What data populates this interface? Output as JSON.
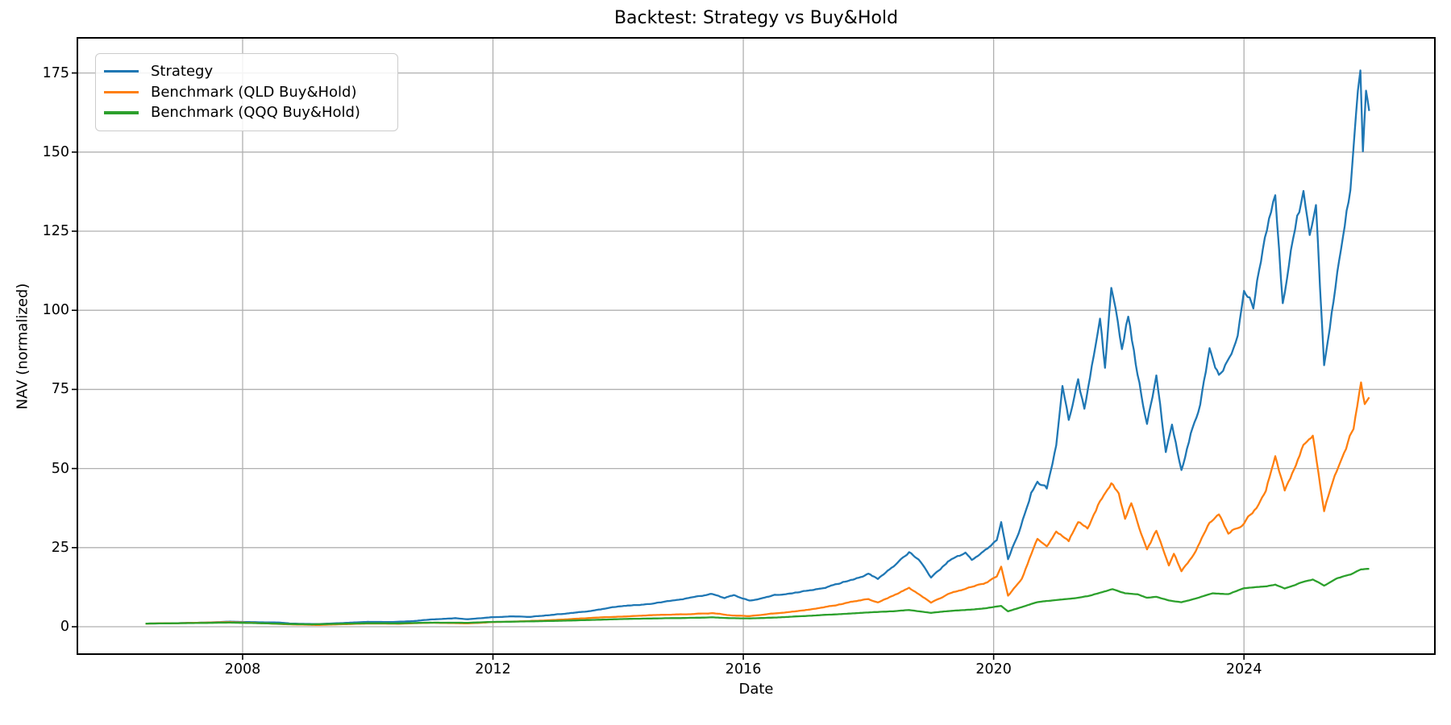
{
  "chart_data": {
    "type": "line",
    "title": "Backtest: Strategy vs Buy&Hold",
    "xlabel": "Date",
    "ylabel": "NAV (normalized)",
    "grid": true,
    "grid_color": "#b0b0b0",
    "axis_color": "#000000",
    "background": "#ffffff",
    "legend_position": "upper left",
    "xlim": [
      2005.36,
      2027.05
    ],
    "ylim": [
      -8.65,
      186.1
    ],
    "x_ticks": [
      2008,
      2012,
      2016,
      2020,
      2024
    ],
    "y_ticks": [
      0,
      25,
      50,
      75,
      100,
      125,
      150,
      175
    ],
    "x_unit": "year",
    "series": [
      {
        "name": "Strategy",
        "color": "#1f77b4",
        "noise_frac": 0.02,
        "points": [
          [
            2006.45,
            1.0
          ],
          [
            2006.7,
            1.05
          ],
          [
            2007.0,
            1.15
          ],
          [
            2007.4,
            1.3
          ],
          [
            2007.8,
            1.6
          ],
          [
            2008.2,
            1.45
          ],
          [
            2008.6,
            1.3
          ],
          [
            2008.75,
            1.0
          ],
          [
            2009.0,
            0.9
          ],
          [
            2009.2,
            0.85
          ],
          [
            2009.6,
            1.15
          ],
          [
            2010.0,
            1.55
          ],
          [
            2010.4,
            1.5
          ],
          [
            2010.7,
            1.75
          ],
          [
            2011.0,
            2.3
          ],
          [
            2011.4,
            2.7
          ],
          [
            2011.6,
            2.4
          ],
          [
            2012.0,
            3.0
          ],
          [
            2012.3,
            3.3
          ],
          [
            2012.6,
            3.1
          ],
          [
            2013.0,
            3.9
          ],
          [
            2013.5,
            4.8
          ],
          [
            2014.0,
            6.3
          ],
          [
            2014.5,
            7.2
          ],
          [
            2015.0,
            8.6
          ],
          [
            2015.5,
            10.4
          ],
          [
            2015.7,
            9.0
          ],
          [
            2015.85,
            10.0
          ],
          [
            2016.1,
            8.2
          ],
          [
            2016.5,
            10.0
          ],
          [
            2016.8,
            10.5
          ],
          [
            2017.0,
            11.2
          ],
          [
            2017.5,
            13.5
          ],
          [
            2018.0,
            16.8
          ],
          [
            2018.15,
            15.0
          ],
          [
            2018.4,
            19.0
          ],
          [
            2018.65,
            23.8
          ],
          [
            2018.8,
            21.0
          ],
          [
            2019.0,
            15.5
          ],
          [
            2019.3,
            21.0
          ],
          [
            2019.55,
            23.0
          ],
          [
            2019.65,
            21.0
          ],
          [
            2019.9,
            24.5
          ],
          [
            2020.05,
            27.0
          ],
          [
            2020.12,
            33.0
          ],
          [
            2020.23,
            21.5
          ],
          [
            2020.4,
            30.0
          ],
          [
            2020.6,
            43.0
          ],
          [
            2020.7,
            47.0
          ],
          [
            2020.85,
            44.0
          ],
          [
            2021.0,
            58.0
          ],
          [
            2021.1,
            76.0
          ],
          [
            2021.2,
            65.0
          ],
          [
            2021.35,
            78.0
          ],
          [
            2021.45,
            68.5
          ],
          [
            2021.6,
            87.0
          ],
          [
            2021.7,
            97.0
          ],
          [
            2021.78,
            82.0
          ],
          [
            2021.88,
            107.5
          ],
          [
            2021.95,
            100.0
          ],
          [
            2022.05,
            88.0
          ],
          [
            2022.15,
            99.0
          ],
          [
            2022.3,
            80.0
          ],
          [
            2022.45,
            64.0
          ],
          [
            2022.6,
            79.0
          ],
          [
            2022.75,
            55.0
          ],
          [
            2022.85,
            63.0
          ],
          [
            2023.0,
            48.5
          ],
          [
            2023.15,
            60.0
          ],
          [
            2023.3,
            70.0
          ],
          [
            2023.45,
            88.0
          ],
          [
            2023.6,
            80.0
          ],
          [
            2023.8,
            88.0
          ],
          [
            2023.9,
            95.0
          ],
          [
            2024.0,
            110.0
          ],
          [
            2024.15,
            104.0
          ],
          [
            2024.3,
            122.0
          ],
          [
            2024.5,
            139.0
          ],
          [
            2024.62,
            103.0
          ],
          [
            2024.75,
            120.0
          ],
          [
            2024.85,
            132.0
          ],
          [
            2024.95,
            138.0
          ],
          [
            2025.05,
            125.0
          ],
          [
            2025.15,
            135.0
          ],
          [
            2025.28,
            82.0
          ],
          [
            2025.4,
            100.0
          ],
          [
            2025.55,
            122.0
          ],
          [
            2025.7,
            140.0
          ],
          [
            2025.82,
            168.0
          ],
          [
            2025.86,
            176.0
          ],
          [
            2025.9,
            150.0
          ],
          [
            2025.95,
            170.0
          ],
          [
            2026.0,
            163.0
          ]
        ]
      },
      {
        "name": "Benchmark (QLD Buy&Hold)",
        "color": "#ff7f0e",
        "noise_frac": 0.02,
        "points": [
          [
            2006.45,
            1.0
          ],
          [
            2007.0,
            1.15
          ],
          [
            2007.8,
            1.45
          ],
          [
            2008.3,
            1.1
          ],
          [
            2008.75,
            0.75
          ],
          [
            2009.2,
            0.55
          ],
          [
            2009.6,
            0.8
          ],
          [
            2010.0,
            1.0
          ],
          [
            2010.5,
            0.95
          ],
          [
            2011.0,
            1.25
          ],
          [
            2011.6,
            1.05
          ],
          [
            2012.0,
            1.45
          ],
          [
            2012.5,
            1.7
          ],
          [
            2013.0,
            2.1
          ],
          [
            2013.5,
            2.7
          ],
          [
            2014.0,
            3.2
          ],
          [
            2014.5,
            3.6
          ],
          [
            2015.0,
            3.9
          ],
          [
            2015.5,
            4.3
          ],
          [
            2015.8,
            3.6
          ],
          [
            2016.1,
            3.4
          ],
          [
            2016.5,
            4.2
          ],
          [
            2017.0,
            5.3
          ],
          [
            2017.5,
            6.8
          ],
          [
            2018.0,
            8.8
          ],
          [
            2018.15,
            7.8
          ],
          [
            2018.4,
            10.0
          ],
          [
            2018.65,
            12.4
          ],
          [
            2019.0,
            7.6
          ],
          [
            2019.3,
            10.5
          ],
          [
            2019.6,
            12.3
          ],
          [
            2019.9,
            14.0
          ],
          [
            2020.05,
            16.0
          ],
          [
            2020.12,
            19.3
          ],
          [
            2020.23,
            10.0
          ],
          [
            2020.45,
            15.0
          ],
          [
            2020.7,
            27.5
          ],
          [
            2020.85,
            25.0
          ],
          [
            2021.0,
            30.0
          ],
          [
            2021.2,
            27.0
          ],
          [
            2021.35,
            33.0
          ],
          [
            2021.5,
            31.0
          ],
          [
            2021.7,
            40.0
          ],
          [
            2021.88,
            45.5
          ],
          [
            2022.0,
            42.0
          ],
          [
            2022.1,
            34.0
          ],
          [
            2022.2,
            39.0
          ],
          [
            2022.45,
            24.0
          ],
          [
            2022.6,
            30.0
          ],
          [
            2022.8,
            19.5
          ],
          [
            2022.88,
            23.0
          ],
          [
            2023.0,
            17.5
          ],
          [
            2023.2,
            23.0
          ],
          [
            2023.45,
            33.0
          ],
          [
            2023.6,
            35.0
          ],
          [
            2023.75,
            29.5
          ],
          [
            2024.0,
            33.0
          ],
          [
            2024.2,
            38.0
          ],
          [
            2024.35,
            44.0
          ],
          [
            2024.5,
            55.0
          ],
          [
            2024.65,
            43.5
          ],
          [
            2024.8,
            50.0
          ],
          [
            2024.95,
            58.0
          ],
          [
            2025.1,
            60.5
          ],
          [
            2025.28,
            36.0
          ],
          [
            2025.45,
            48.0
          ],
          [
            2025.6,
            55.0
          ],
          [
            2025.75,
            63.0
          ],
          [
            2025.87,
            77.0
          ],
          [
            2025.93,
            70.0
          ],
          [
            2026.0,
            72.5
          ]
        ]
      },
      {
        "name": "Benchmark (QQQ Buy&Hold)",
        "color": "#2ca02c",
        "noise_frac": 0.009,
        "points": [
          [
            2006.45,
            1.0
          ],
          [
            2007.0,
            1.1
          ],
          [
            2007.8,
            1.3
          ],
          [
            2008.3,
            1.1
          ],
          [
            2008.75,
            0.85
          ],
          [
            2009.1,
            0.75
          ],
          [
            2009.6,
            0.95
          ],
          [
            2010.0,
            1.1
          ],
          [
            2010.5,
            1.08
          ],
          [
            2011.0,
            1.3
          ],
          [
            2011.6,
            1.25
          ],
          [
            2012.0,
            1.55
          ],
          [
            2012.5,
            1.65
          ],
          [
            2013.0,
            1.85
          ],
          [
            2013.5,
            2.1
          ],
          [
            2014.0,
            2.4
          ],
          [
            2014.5,
            2.6
          ],
          [
            2015.0,
            2.75
          ],
          [
            2015.5,
            2.95
          ],
          [
            2015.8,
            2.7
          ],
          [
            2016.1,
            2.6
          ],
          [
            2016.5,
            2.9
          ],
          [
            2017.0,
            3.4
          ],
          [
            2017.5,
            3.9
          ],
          [
            2018.0,
            4.5
          ],
          [
            2018.4,
            4.9
          ],
          [
            2018.65,
            5.3
          ],
          [
            2019.0,
            4.4
          ],
          [
            2019.3,
            5.0
          ],
          [
            2019.6,
            5.4
          ],
          [
            2019.9,
            5.9
          ],
          [
            2020.12,
            6.6
          ],
          [
            2020.23,
            4.9
          ],
          [
            2020.45,
            6.2
          ],
          [
            2020.7,
            7.8
          ],
          [
            2021.0,
            8.5
          ],
          [
            2021.2,
            8.9
          ],
          [
            2021.5,
            9.6
          ],
          [
            2021.7,
            10.8
          ],
          [
            2021.9,
            11.9
          ],
          [
            2022.1,
            10.6
          ],
          [
            2022.3,
            10.3
          ],
          [
            2022.45,
            9.2
          ],
          [
            2022.6,
            9.4
          ],
          [
            2022.8,
            8.3
          ],
          [
            2023.0,
            7.8
          ],
          [
            2023.25,
            9.0
          ],
          [
            2023.5,
            10.5
          ],
          [
            2023.75,
            10.3
          ],
          [
            2024.0,
            12.2
          ],
          [
            2024.3,
            12.6
          ],
          [
            2024.5,
            13.3
          ],
          [
            2024.65,
            12.1
          ],
          [
            2024.85,
            13.6
          ],
          [
            2025.0,
            14.6
          ],
          [
            2025.1,
            15.0
          ],
          [
            2025.28,
            13.0
          ],
          [
            2025.5,
            15.3
          ],
          [
            2025.7,
            16.5
          ],
          [
            2025.87,
            18.3
          ],
          [
            2026.0,
            18.3
          ]
        ]
      }
    ]
  }
}
